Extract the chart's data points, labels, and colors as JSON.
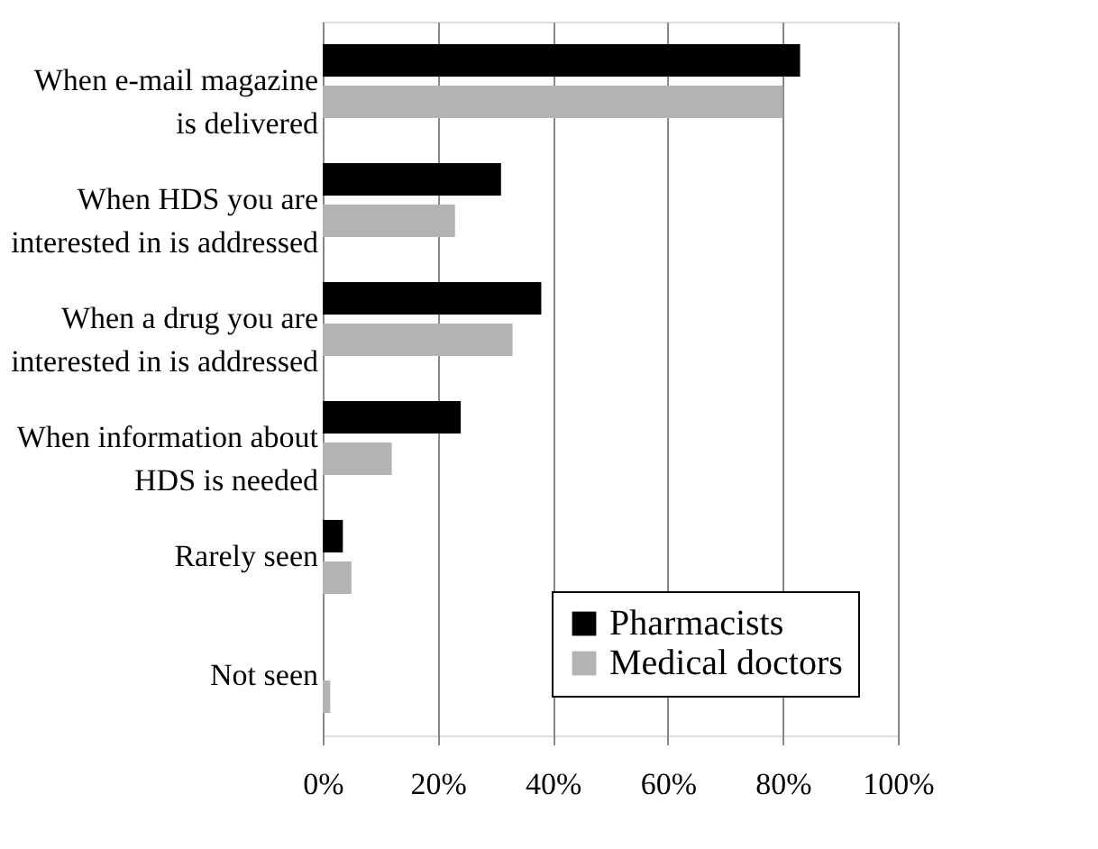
{
  "chart_data": {
    "type": "bar",
    "orientation": "horizontal",
    "categories": [
      "When e-mail magazine\nis delivered",
      "When HDS you are\ninterested in is addressed",
      "When a drug you are\ninterested in is addressed",
      "When information about\nHDS is needed",
      "Rarely seen",
      "Not seen"
    ],
    "series": [
      {
        "name": "Pharmacists",
        "color": "#000000",
        "values": [
          83,
          31,
          38,
          24,
          3.5,
          0
        ]
      },
      {
        "name": "Medical doctors",
        "color": "#b3b3b3",
        "values": [
          80,
          23,
          33,
          12,
          5,
          1.3
        ]
      }
    ],
    "xlim": [
      0,
      100
    ],
    "xticks": [
      {
        "value": 0,
        "label": "0%"
      },
      {
        "value": 20,
        "label": "20%"
      },
      {
        "value": 40,
        "label": "40%"
      },
      {
        "value": 60,
        "label": "60%"
      },
      {
        "value": 80,
        "label": "80%"
      },
      {
        "value": 100,
        "label": "100%"
      }
    ],
    "grid": "x",
    "legend": "bottom right"
  }
}
